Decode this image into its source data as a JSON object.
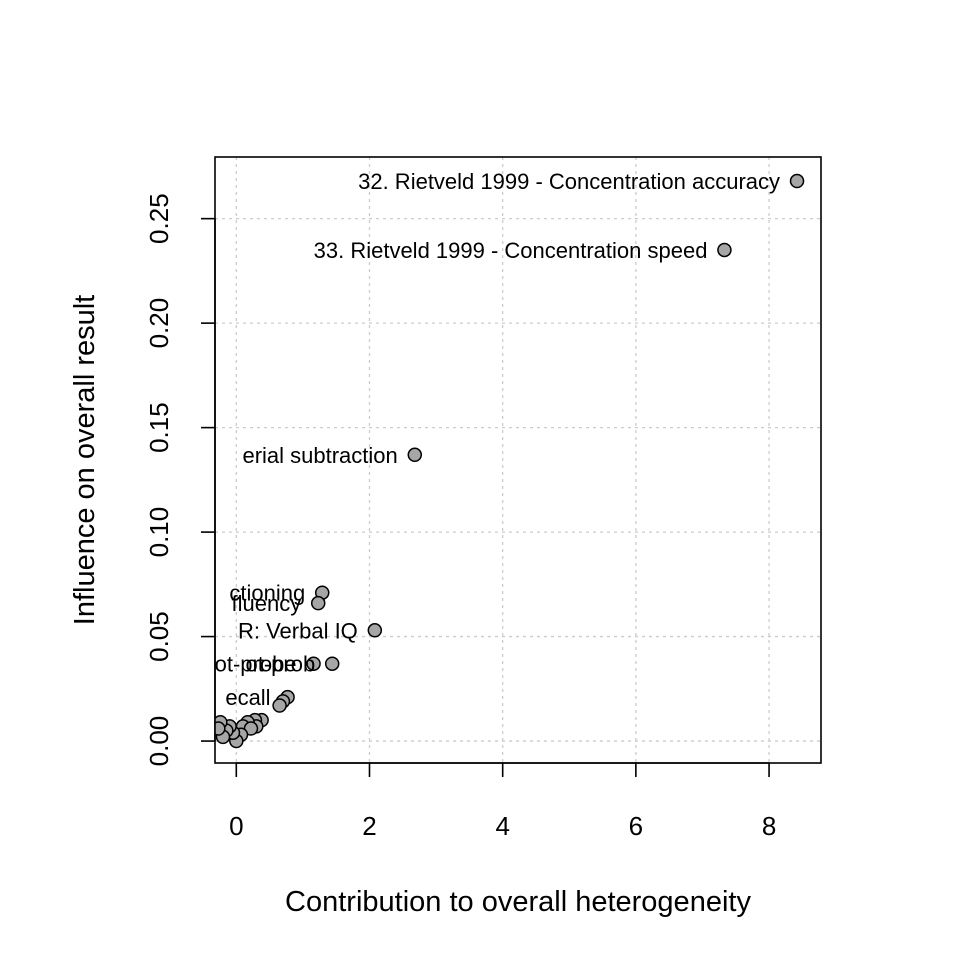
{
  "chart_data": {
    "type": "scatter",
    "title": "",
    "xlabel": "Contribution to overall heterogeneity",
    "ylabel": "Influence on overall result",
    "xlim": [
      -0.32,
      8.78
    ],
    "ylim": [
      -0.0105,
      0.2795
    ],
    "x_ticks": [
      0,
      2,
      4,
      6,
      8
    ],
    "x_tick_labels": [
      "0",
      "2",
      "4",
      "6",
      "8"
    ],
    "y_ticks": [
      0.0,
      0.05,
      0.1,
      0.15,
      0.2,
      0.25
    ],
    "y_tick_labels": [
      "0.00",
      "0.05",
      "0.10",
      "0.15",
      "0.20",
      "0.25"
    ],
    "grid": true,
    "legend": "none",
    "point_color": "#a6a6a6",
    "grid_color": "#cccccc",
    "points": [
      {
        "x": 8.42,
        "y": 0.268,
        "label": "32. Rietveld 1999 - Concentration accuracy"
      },
      {
        "x": 7.33,
        "y": 0.235,
        "label": "33. Rietveld 1999 - Concentration speed"
      },
      {
        "x": 2.68,
        "y": 0.137,
        "label": "erial subtraction"
      },
      {
        "x": 1.29,
        "y": 0.071,
        "label": "ctioning"
      },
      {
        "x": 1.23,
        "y": 0.066,
        "label": "fluency"
      },
      {
        "x": 2.08,
        "y": 0.053,
        "label": "R: Verbal IQ"
      },
      {
        "x": 1.44,
        "y": 0.037,
        "label": "ot-prob"
      },
      {
        "x": 1.16,
        "y": 0.037,
        "label": "ot-probe"
      },
      {
        "x": 0.77,
        "y": 0.021,
        "label": "ecall"
      },
      {
        "x": 0.7,
        "y": 0.019,
        "label": ""
      },
      {
        "x": 0.65,
        "y": 0.017,
        "label": ""
      },
      {
        "x": 0.38,
        "y": 0.01,
        "label": ""
      },
      {
        "x": 0.28,
        "y": 0.01,
        "label": ""
      },
      {
        "x": 0.3,
        "y": 0.007,
        "label": ""
      },
      {
        "x": 0.17,
        "y": 0.009,
        "label": ""
      },
      {
        "x": 0.1,
        "y": 0.007,
        "label": ""
      },
      {
        "x": 0.22,
        "y": 0.006,
        "label": ""
      },
      {
        "x": 0.07,
        "y": 0.003,
        "label": ""
      },
      {
        "x": 0.0,
        "y": 0.0,
        "label": ""
      },
      {
        "x": -0.05,
        "y": 0.004,
        "label": ""
      },
      {
        "x": -0.1,
        "y": 0.007,
        "label": ""
      },
      {
        "x": -0.15,
        "y": 0.005,
        "label": ""
      },
      {
        "x": -0.2,
        "y": 0.002,
        "label": ""
      },
      {
        "x": -0.24,
        "y": 0.009,
        "label": ""
      },
      {
        "x": -0.27,
        "y": 0.006,
        "label": ""
      }
    ]
  }
}
